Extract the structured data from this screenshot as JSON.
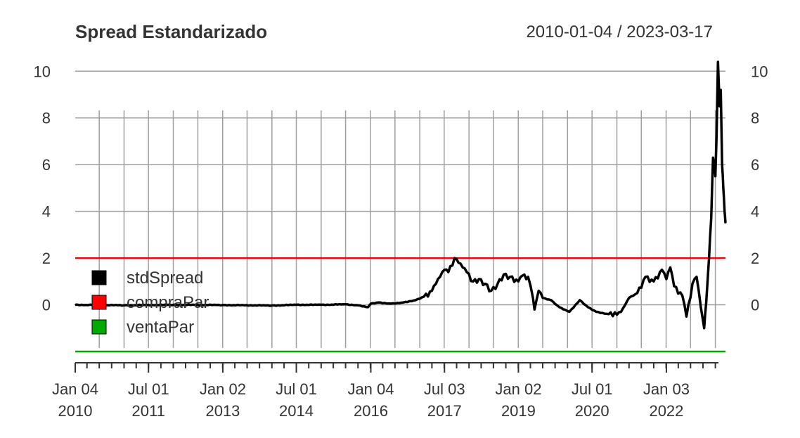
{
  "chart_data": {
    "type": "line",
    "title": "Spread Estandarizado",
    "date_range_label": "2010-01-04 / 2023-03-17",
    "x_range": [
      "2010-01-04",
      "2023-03-17"
    ],
    "ylim": [
      -2,
      10.4
    ],
    "y_ticks": [
      0,
      2,
      4,
      6,
      8,
      10
    ],
    "x_ticks": [
      {
        "date": "2010-01-04",
        "label_top": "Jan 04",
        "label_bottom": "2010"
      },
      {
        "date": "2011-07-01",
        "label_top": "Jul 01",
        "label_bottom": "2011"
      },
      {
        "date": "2013-01-02",
        "label_top": "Jan 02",
        "label_bottom": "2013"
      },
      {
        "date": "2014-07-01",
        "label_top": "Jul 01",
        "label_bottom": "2014"
      },
      {
        "date": "2016-01-04",
        "label_top": "Jan 04",
        "label_bottom": "2016"
      },
      {
        "date": "2017-07-03",
        "label_top": "Jul 03",
        "label_bottom": "2017"
      },
      {
        "date": "2019-01-02",
        "label_top": "Jan 02",
        "label_bottom": "2019"
      },
      {
        "date": "2020-07-01",
        "label_top": "Jul 01",
        "label_bottom": "2020"
      },
      {
        "date": "2022-01-03",
        "label_top": "Jan 03",
        "label_bottom": "2022"
      }
    ],
    "grid": true,
    "legend": {
      "placement": "left",
      "entries": [
        {
          "name": "stdSpread",
          "color": "#000000"
        },
        {
          "name": "compraPar",
          "color": "#ff0000"
        },
        {
          "name": "ventaPar",
          "color": "#00aa00"
        }
      ]
    },
    "series": [
      {
        "name": "stdSpread",
        "color": "#000000",
        "points": [
          [
            "2010-01-04",
            0.0
          ],
          [
            "2011-01-03",
            -0.02
          ],
          [
            "2012-01-03",
            0.0
          ],
          [
            "2013-01-02",
            -0.01
          ],
          [
            "2014-01-02",
            -0.03
          ],
          [
            "2014-07-01",
            0.0
          ],
          [
            "2015-01-02",
            0.0
          ],
          [
            "2015-07-01",
            0.02
          ],
          [
            "2015-10-01",
            -0.02
          ],
          [
            "2015-12-15",
            -0.1
          ],
          [
            "2016-01-04",
            0.05
          ],
          [
            "2016-03-01",
            0.1
          ],
          [
            "2016-06-01",
            0.05
          ],
          [
            "2016-09-01",
            0.1
          ],
          [
            "2016-12-01",
            0.2
          ],
          [
            "2017-02-01",
            0.35
          ],
          [
            "2017-04-01",
            0.6
          ],
          [
            "2017-05-01",
            0.9
          ],
          [
            "2017-06-01",
            1.2
          ],
          [
            "2017-07-03",
            1.5
          ],
          [
            "2017-08-01",
            1.4
          ],
          [
            "2017-09-15",
            2.0
          ],
          [
            "2017-10-15",
            1.8
          ],
          [
            "2017-11-15",
            1.6
          ],
          [
            "2017-12-15",
            1.4
          ],
          [
            "2018-02-01",
            1.0
          ],
          [
            "2018-03-15",
            1.1
          ],
          [
            "2018-05-01",
            0.9
          ],
          [
            "2018-06-15",
            0.6
          ],
          [
            "2018-08-01",
            0.9
          ],
          [
            "2018-09-15",
            1.3
          ],
          [
            "2018-11-01",
            1.2
          ],
          [
            "2019-01-02",
            1.0
          ],
          [
            "2019-02-01",
            1.25
          ],
          [
            "2019-03-15",
            1.2
          ],
          [
            "2019-04-20",
            0.3
          ],
          [
            "2019-05-01",
            -0.2
          ],
          [
            "2019-06-01",
            0.6
          ],
          [
            "2019-07-01",
            0.3
          ],
          [
            "2019-09-01",
            0.2
          ],
          [
            "2019-11-01",
            -0.1
          ],
          [
            "2020-01-15",
            -0.3
          ],
          [
            "2020-04-01",
            0.2
          ],
          [
            "2020-06-01",
            -0.1
          ],
          [
            "2020-08-01",
            -0.3
          ],
          [
            "2020-11-01",
            -0.4
          ],
          [
            "2021-02-01",
            -0.3
          ],
          [
            "2021-04-01",
            0.3
          ],
          [
            "2021-06-01",
            0.5
          ],
          [
            "2021-08-01",
            1.2
          ],
          [
            "2021-10-01",
            1.0
          ],
          [
            "2021-12-01",
            1.5
          ],
          [
            "2022-01-03",
            1.1
          ],
          [
            "2022-02-01",
            1.6
          ],
          [
            "2022-03-01",
            0.8
          ],
          [
            "2022-05-01",
            0.4
          ],
          [
            "2022-06-01",
            -0.5
          ],
          [
            "2022-07-15",
            0.9
          ],
          [
            "2022-08-15",
            1.2
          ],
          [
            "2022-09-15",
            -0.1
          ],
          [
            "2022-10-10",
            -1.0
          ],
          [
            "2022-10-25",
            0.1
          ],
          [
            "2022-11-15",
            2.0
          ],
          [
            "2022-12-01",
            3.7
          ],
          [
            "2022-12-15",
            6.3
          ],
          [
            "2023-01-01",
            5.5
          ],
          [
            "2023-01-10",
            7.2
          ],
          [
            "2023-01-20",
            10.4
          ],
          [
            "2023-02-01",
            8.5
          ],
          [
            "2023-02-10",
            9.2
          ],
          [
            "2023-02-20",
            6.0
          ],
          [
            "2023-03-01",
            5.0
          ],
          [
            "2023-03-10",
            4.0
          ],
          [
            "2023-03-17",
            3.5
          ]
        ]
      },
      {
        "name": "compraPar",
        "color": "#ff0000",
        "constant": 2
      },
      {
        "name": "ventaPar",
        "color": "#00aa00",
        "constant": -2
      }
    ]
  }
}
